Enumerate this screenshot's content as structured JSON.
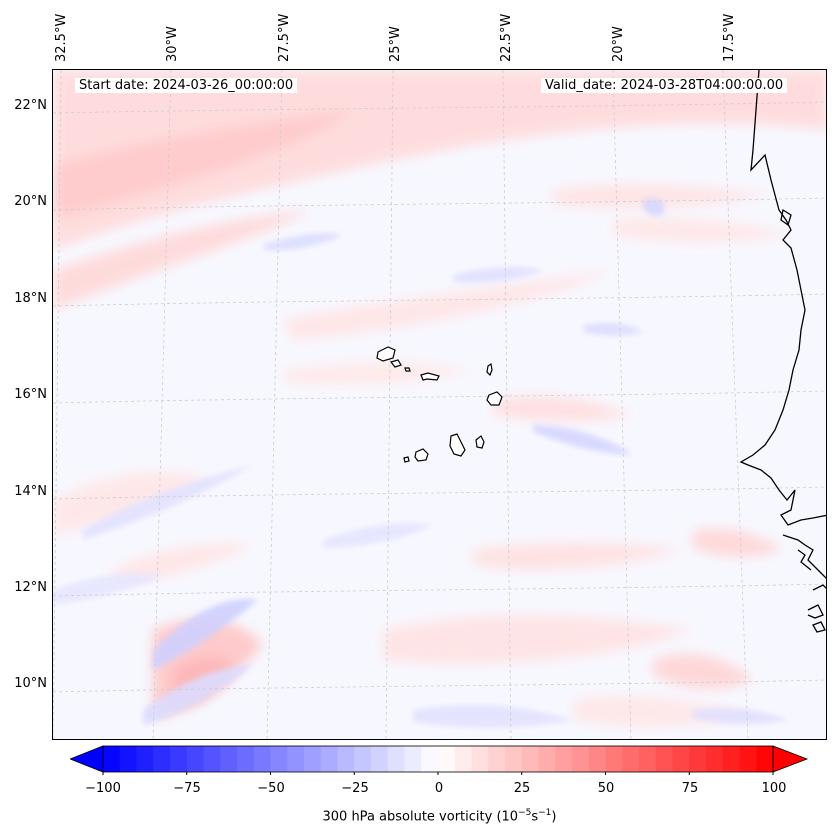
{
  "map": {
    "start_date": "Start date: 2024-03-26_00:00:00",
    "valid_date": "Valid_date: 2024-03-28T04:00:00.00",
    "lon_labels": [
      "32.5°W",
      "30°W",
      "27.5°W",
      "25°W",
      "22.5°W",
      "20°W",
      "17.5°W"
    ],
    "lat_labels": [
      "22°N",
      "20°N",
      "18°N",
      "16°N",
      "14°N",
      "12°N",
      "10°N"
    ],
    "field": "300 hPa absolute vorticity",
    "colors": {
      "positive": "#ff0000",
      "negative": "#0000ff",
      "coast": "#000000",
      "grid": "#cccccc"
    }
  },
  "colorbar": {
    "title": "300 hPa absolute vorticity (10",
    "title_exp1": "−5",
    "title_mid": "s",
    "title_exp2": "−1",
    "title_end": ")",
    "tick_labels": [
      "−100",
      "−75",
      "−50",
      "−25",
      "0",
      "25",
      "50",
      "75",
      "100"
    ],
    "range": [
      -100,
      100
    ],
    "levels": 40
  }
}
